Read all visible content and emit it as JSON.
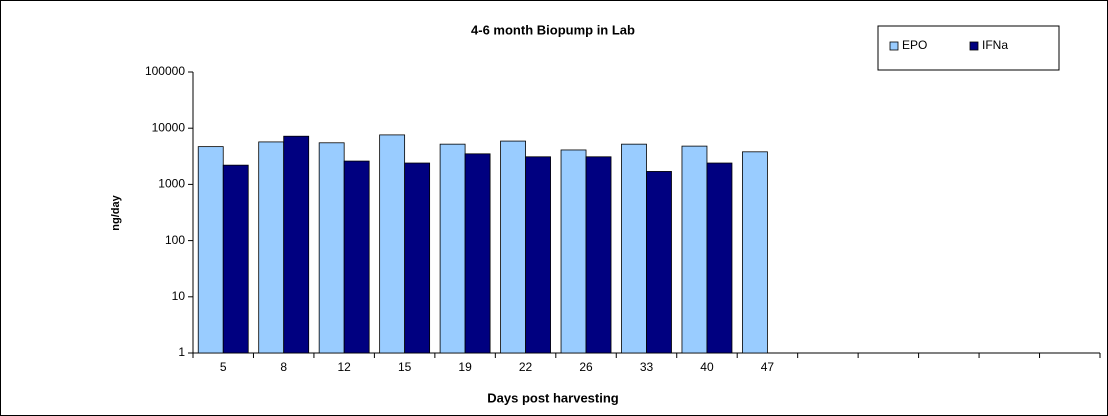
{
  "chart_data": {
    "type": "bar",
    "title": "4-6 month Biopump in Lab",
    "x_label": "Days post harvesting",
    "y_label": "ng/day",
    "categories": [
      "5",
      "8",
      "12",
      "15",
      "19",
      "22",
      "26",
      "33",
      "40",
      "47",
      null,
      null,
      null,
      null,
      null
    ],
    "series": [
      {
        "name": "EPO",
        "color": "#99ccff",
        "values": [
          4700,
          5700,
          5500,
          7600,
          5200,
          5900,
          4100,
          5200,
          4800,
          3800,
          null,
          null,
          null,
          null,
          null
        ]
      },
      {
        "name": "IFNa",
        "color": "#000080",
        "values": [
          2200,
          7200,
          2600,
          2400,
          3500,
          3100,
          3100,
          1700,
          2400,
          null,
          null,
          null,
          null,
          null,
          null
        ]
      }
    ],
    "yscale": "log",
    "ylim": [
      1,
      100000
    ],
    "yticks": [
      1,
      10,
      100,
      1000,
      10000,
      100000
    ],
    "grid": false,
    "legend": "top-right"
  }
}
